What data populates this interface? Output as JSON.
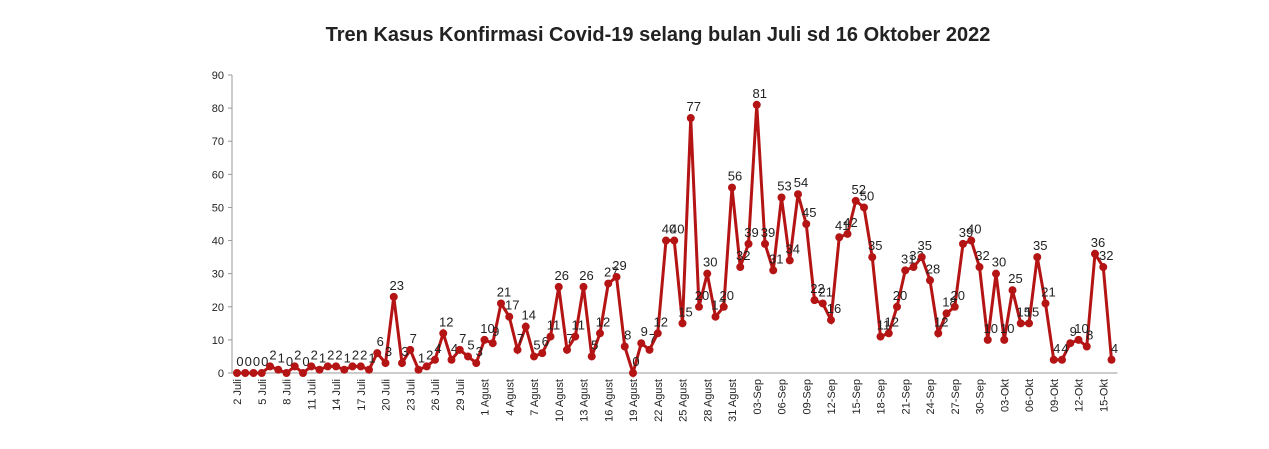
{
  "chart_data": {
    "type": "line",
    "title": "Tren Kasus Konfirmasi Covid-19 selang bulan Juli  sd  16 Oktober 2022",
    "categories": [
      "2 Juli",
      null,
      null,
      "5 Juli",
      null,
      null,
      "8 Juli",
      null,
      null,
      "11 Juli",
      null,
      null,
      "14 Juli",
      null,
      null,
      "17 Juli",
      null,
      null,
      "20 Juli",
      null,
      null,
      "23 Juli",
      null,
      null,
      "26 Juli",
      null,
      null,
      "29 Juli",
      null,
      null,
      "1 Agust",
      null,
      null,
      "4 Agust",
      null,
      null,
      "7 Agust",
      null,
      null,
      "10 Agust",
      null,
      null,
      "13 Agust",
      null,
      null,
      "16 Agust",
      null,
      null,
      "19 Agust",
      null,
      null,
      "22 Agust",
      null,
      null,
      "25 Agust",
      null,
      null,
      "28 Agust",
      null,
      null,
      "31 Agust",
      null,
      null,
      "03-Sep",
      null,
      null,
      "06-Sep",
      null,
      null,
      "09-Sep",
      null,
      null,
      "12-Sep",
      null,
      null,
      "15-Sep",
      null,
      null,
      "18-Sep",
      null,
      null,
      "21-Sep",
      null,
      null,
      "24-Sep",
      null,
      null,
      "27-Sep",
      null,
      null,
      "30-Sep",
      null,
      null,
      "03-Okt",
      null,
      null,
      "06-Okt",
      null,
      null,
      "09-Okt",
      null,
      null,
      "12-Okt",
      null,
      null,
      "15-Okt",
      null
    ],
    "series": [
      {
        "color": "#b41414",
        "values": [
          0,
          0,
          0,
          0,
          2,
          1,
          0,
          2,
          0,
          2,
          1,
          2,
          2,
          1,
          2,
          2,
          1,
          6,
          3,
          23,
          3,
          7,
          1,
          2,
          4,
          12,
          4,
          7,
          5,
          3,
          10,
          9,
          21,
          17,
          7,
          14,
          5,
          6,
          11,
          26,
          7,
          11,
          26,
          5,
          12,
          27,
          29,
          8,
          0,
          9,
          7,
          12,
          40,
          40,
          15,
          77,
          20,
          30,
          17,
          20,
          56,
          32,
          39,
          81,
          39,
          31,
          53,
          34,
          54,
          45,
          22,
          21,
          16,
          41,
          42,
          52,
          50,
          35,
          11,
          12,
          20,
          31,
          32,
          35,
          28,
          12,
          18,
          20,
          39,
          40,
          32,
          10,
          30,
          10,
          25,
          15,
          15,
          35,
          21,
          4,
          4,
          9,
          10,
          8,
          36,
          32,
          4
        ]
      }
    ],
    "ylim": [
      0,
      90
    ],
    "yticks": [
      0,
      10,
      20,
      30,
      40,
      50,
      60,
      70,
      80,
      90
    ],
    "grid": false
  }
}
